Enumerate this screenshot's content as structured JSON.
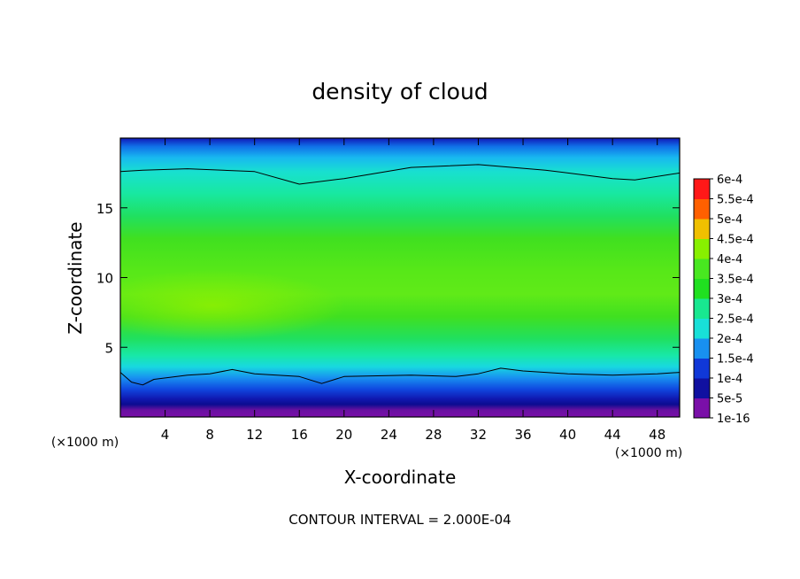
{
  "chart_data": {
    "type": "heatmap",
    "title": "density of cloud",
    "xlabel": "X-coordinate",
    "ylabel": "Z-coordinate",
    "x_unit": "(×1000 m)",
    "x_unit_right": "(×1000 m)",
    "footer": "CONTOUR INTERVAL = 2.000E-04",
    "xlim": [
      0,
      50
    ],
    "ylim": [
      0,
      20
    ],
    "x_ticks": [
      4,
      8,
      12,
      16,
      20,
      24,
      28,
      32,
      36,
      40,
      44,
      48
    ],
    "y_ticks": [
      5,
      10,
      15
    ],
    "levels": [
      "1e-16",
      "5e-5",
      "1e-4",
      "1.5e-4",
      "2e-4",
      "2.5e-4",
      "3e-4",
      "3.5e-4",
      "4e-4",
      "4.5e-4",
      "5e-4",
      "5.5e-4",
      "6e-4"
    ],
    "colorbar_colors": [
      "#7a0fa8",
      "#1010a0",
      "#1038d8",
      "#1890f0",
      "#18e0d8",
      "#18e890",
      "#20e020",
      "#48e820",
      "#88f000",
      "#f0c000",
      "#ff6000",
      "#ff1818",
      "#ff6a6a"
    ],
    "contour_lines": [
      {
        "level": "2e-4",
        "x": [
          0,
          2,
          6,
          12,
          16,
          20,
          26,
          32,
          38,
          44,
          46,
          50
        ],
        "z": [
          17.6,
          17.7,
          17.8,
          17.6,
          16.7,
          17.1,
          17.9,
          18.1,
          17.7,
          17.1,
          17.0,
          17.5
        ]
      },
      {
        "level": "1e-4",
        "x": [
          0,
          1,
          2,
          3,
          6,
          8,
          10,
          12,
          16,
          18,
          20,
          26,
          30,
          32,
          34,
          36,
          40,
          44,
          48,
          50
        ],
        "z": [
          3.2,
          2.5,
          2.3,
          2.7,
          3.0,
          3.1,
          3.4,
          3.1,
          2.9,
          2.4,
          2.9,
          3.0,
          2.9,
          3.1,
          3.5,
          3.3,
          3.1,
          3.0,
          3.1,
          3.2
        ]
      }
    ],
    "field_peak": {
      "x": 8,
      "z": 8.2,
      "value": "3.6e-4"
    },
    "colorbar_min": "1e-16",
    "colorbar_max": "6e-4"
  }
}
